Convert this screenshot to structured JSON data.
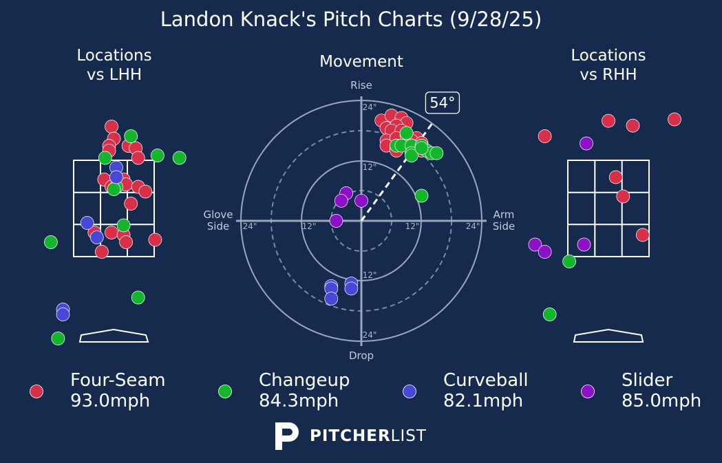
{
  "title": "Landon Knack's Pitch Charts (9/28/25)",
  "panels": {
    "lhh_title": [
      "Locations",
      "vs LHH"
    ],
    "movement_title": "Movement",
    "rhh_title": [
      "Locations",
      "vs RHH"
    ]
  },
  "movement_labels": {
    "top": "Rise",
    "bottom": "Drop",
    "left": [
      "Glove",
      "Side"
    ],
    "right": [
      "Arm",
      "Side"
    ],
    "arm_angle": "54°",
    "ring_labels": [
      "24\"",
      "12\"",
      "12\"",
      "24\"",
      "12\"",
      "24\"",
      "24\"",
      "12\""
    ]
  },
  "colors": {
    "Four-Seam": "#d9304a",
    "Changeup": "#14b62b",
    "Curveball": "#4848d8",
    "Slider": "#8c10c8",
    "background": "#152a4d"
  },
  "brand": {
    "bold": "PITCHER",
    "light": "LIST"
  },
  "chart_data": [
    {
      "type": "scatter",
      "title": "Locations vs LHH",
      "units": "feet (catcher view)",
      "xlim": [
        -2.4,
        2.4
      ],
      "ylim": [
        -0.6,
        4.6
      ],
      "zone": {
        "left": -0.83,
        "right": 0.83,
        "bottom": 1.5,
        "top": 3.5
      },
      "series": [
        {
          "name": "Four-Seam",
          "points": [
            [
              -0.05,
              4.2
            ],
            [
              0.0,
              3.95
            ],
            [
              -0.1,
              3.8
            ],
            [
              -0.1,
              3.7
            ],
            [
              0.3,
              3.8
            ],
            [
              0.45,
              3.75
            ],
            [
              0.5,
              3.55
            ],
            [
              -0.2,
              3.1
            ],
            [
              0.2,
              3.1
            ],
            [
              0.25,
              3.0
            ],
            [
              -0.05,
              2.95
            ],
            [
              0.5,
              2.95
            ],
            [
              0.65,
              2.85
            ],
            [
              0.35,
              2.6
            ],
            [
              -0.4,
              2.0
            ],
            [
              -0.05,
              2.0
            ],
            [
              0.2,
              1.95
            ],
            [
              0.25,
              1.8
            ],
            [
              0.85,
              1.85
            ],
            [
              -0.25,
              1.6
            ]
          ]
        },
        {
          "name": "Changeup",
          "points": [
            [
              0.35,
              4.0
            ],
            [
              -0.18,
              3.55
            ],
            [
              0.9,
              3.6
            ],
            [
              1.35,
              3.55
            ],
            [
              0.05,
              2.95
            ],
            [
              0.0,
              2.9
            ],
            [
              0.2,
              2.15
            ],
            [
              -1.3,
              1.8
            ],
            [
              0.5,
              0.65
            ],
            [
              -1.15,
              -0.2
            ]
          ]
        },
        {
          "name": "Curveball",
          "points": [
            [
              0.05,
              3.35
            ],
            [
              0.05,
              3.15
            ],
            [
              -0.55,
              2.2
            ],
            [
              -0.35,
              1.9
            ],
            [
              -1.05,
              0.4
            ],
            [
              -1.05,
              0.3
            ]
          ]
        },
        {
          "name": "Slider",
          "points": []
        }
      ]
    },
    {
      "type": "scatter",
      "title": "Movement",
      "units": "inches",
      "xlim": [
        -24,
        24
      ],
      "ylim": [
        -24,
        24
      ],
      "arm_angle_deg": 54,
      "series": [
        {
          "name": "Four-Seam",
          "points": [
            [
              4,
              20
            ],
            [
              6,
              21
            ],
            [
              8,
              20.5
            ],
            [
              9,
              19.5
            ],
            [
              5,
              18.5
            ],
            [
              7,
              19
            ],
            [
              6,
              18
            ],
            [
              8,
              18
            ],
            [
              11,
              16.5
            ],
            [
              5,
              16
            ],
            [
              7,
              16.5
            ],
            [
              9,
              17
            ],
            [
              10,
              16
            ],
            [
              12,
              15.5
            ],
            [
              5,
              15
            ],
            [
              7,
              14.5
            ],
            [
              10,
              15
            ],
            [
              12,
              14
            ],
            [
              7,
              14
            ]
          ]
        },
        {
          "name": "Changeup",
          "points": [
            [
              9,
              17.5
            ],
            [
              7,
              15
            ],
            [
              8,
              15
            ],
            [
              10,
              15
            ],
            [
              12,
              15
            ],
            [
              13,
              14
            ],
            [
              10,
              13.5
            ],
            [
              14,
              13.5
            ],
            [
              10,
              13
            ],
            [
              12,
              14.5
            ],
            [
              15,
              13.5
            ],
            [
              12,
              5
            ]
          ]
        },
        {
          "name": "Curveball",
          "points": [
            [
              -2,
              -12.5
            ],
            [
              -2,
              -13.5
            ],
            [
              -6,
              -13
            ],
            [
              -6,
              -13.5
            ],
            [
              -6,
              -15.5
            ]
          ]
        },
        {
          "name": "Slider",
          "points": [
            [
              -3,
              5.5
            ],
            [
              -4,
              4
            ],
            [
              0,
              4
            ],
            [
              -5,
              0
            ]
          ]
        }
      ]
    },
    {
      "type": "scatter",
      "title": "Locations vs RHH",
      "units": "feet (catcher view)",
      "xlim": [
        -2.4,
        2.4
      ],
      "ylim": [
        -0.6,
        4.6
      ],
      "zone": {
        "left": -0.83,
        "right": 0.83,
        "bottom": 1.5,
        "top": 3.5
      },
      "series": [
        {
          "name": "Four-Seam",
          "points": [
            [
              -1.3,
              4.0
            ],
            [
              0.0,
              4.32
            ],
            [
              0.5,
              4.22
            ],
            [
              1.35,
              4.35
            ],
            [
              0.15,
              3.15
            ],
            [
              0.3,
              2.75
            ],
            [
              0.7,
              1.95
            ]
          ]
        },
        {
          "name": "Changeup",
          "points": [
            [
              -0.8,
              1.4
            ],
            [
              -1.2,
              0.3
            ]
          ]
        },
        {
          "name": "Curveball",
          "points": []
        },
        {
          "name": "Slider",
          "points": [
            [
              -0.45,
              3.85
            ],
            [
              -1.5,
              1.75
            ],
            [
              -1.3,
              1.6
            ],
            [
              -0.5,
              1.75
            ]
          ]
        }
      ]
    }
  ],
  "legend": [
    {
      "name": "Four-Seam",
      "speed": "93.0mph"
    },
    {
      "name": "Changeup",
      "speed": "84.3mph"
    },
    {
      "name": "Curveball",
      "speed": "82.1mph"
    },
    {
      "name": "Slider",
      "speed": "85.0mph"
    }
  ]
}
